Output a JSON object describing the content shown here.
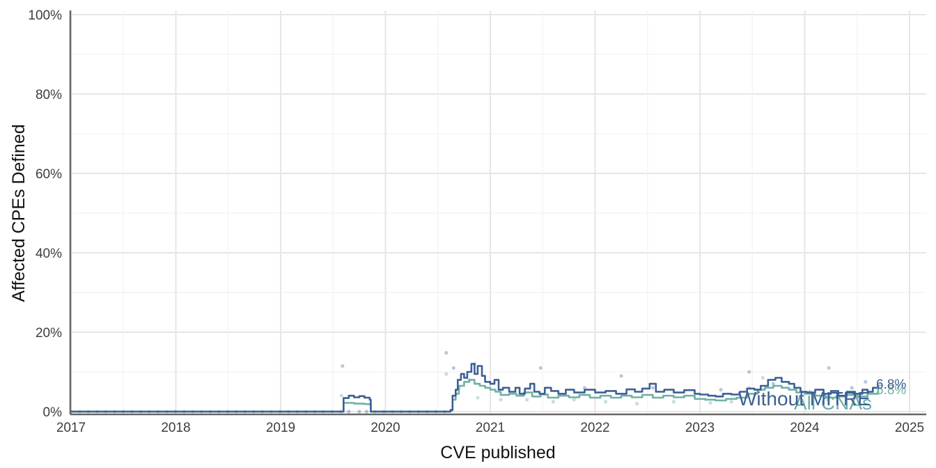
{
  "chart_data": {
    "type": "line",
    "title": "",
    "xlabel": "CVE published",
    "ylabel": "Affected CPEs Defined",
    "xlim": [
      2017,
      2025
    ],
    "ylim": [
      0,
      100
    ],
    "x_ticks": [
      "2017",
      "2018",
      "2019",
      "2020",
      "2021",
      "2022",
      "2023",
      "2024",
      "2025"
    ],
    "y_ticks": [
      "0%",
      "20%",
      "40%",
      "60%",
      "80%",
      "100%"
    ],
    "grid": true,
    "legend": "none (series labelled directly on lines)",
    "series": [
      {
        "name": "Without MITRE",
        "color": "#3c5f94",
        "end_label": "6.8%",
        "points": [
          [
            2017.0,
            0
          ],
          [
            2019.58,
            0
          ],
          [
            2019.6,
            3.4
          ],
          [
            2019.65,
            4.0
          ],
          [
            2019.7,
            3.6
          ],
          [
            2019.75,
            3.9
          ],
          [
            2019.8,
            3.5
          ],
          [
            2019.85,
            3.0
          ],
          [
            2019.86,
            0
          ],
          [
            2020.5,
            0
          ],
          [
            2020.62,
            0.4
          ],
          [
            2020.64,
            4.0
          ],
          [
            2020.67,
            5.5
          ],
          [
            2020.69,
            8.0
          ],
          [
            2020.72,
            9.5
          ],
          [
            2020.75,
            8.5
          ],
          [
            2020.78,
            10.0
          ],
          [
            2020.82,
            12.0
          ],
          [
            2020.85,
            9.5
          ],
          [
            2020.88,
            11.5
          ],
          [
            2020.92,
            9.0
          ],
          [
            2020.95,
            7.5
          ],
          [
            2021.0,
            7.0
          ],
          [
            2021.04,
            8.0
          ],
          [
            2021.08,
            5.5
          ],
          [
            2021.12,
            6.0
          ],
          [
            2021.18,
            5.0
          ],
          [
            2021.24,
            6.0
          ],
          [
            2021.28,
            4.5
          ],
          [
            2021.33,
            5.8
          ],
          [
            2021.38,
            7.0
          ],
          [
            2021.42,
            5.0
          ],
          [
            2021.47,
            4.5
          ],
          [
            2021.52,
            6.0
          ],
          [
            2021.58,
            5.2
          ],
          [
            2021.65,
            4.5
          ],
          [
            2021.72,
            5.5
          ],
          [
            2021.8,
            4.8
          ],
          [
            2021.9,
            5.5
          ],
          [
            2022.0,
            4.8
          ],
          [
            2022.1,
            5.2
          ],
          [
            2022.2,
            4.5
          ],
          [
            2022.3,
            5.6
          ],
          [
            2022.38,
            5.0
          ],
          [
            2022.45,
            5.8
          ],
          [
            2022.52,
            7.0
          ],
          [
            2022.58,
            5.0
          ],
          [
            2022.66,
            5.5
          ],
          [
            2022.75,
            4.8
          ],
          [
            2022.85,
            5.4
          ],
          [
            2022.95,
            4.5
          ],
          [
            2023.0,
            4.3
          ],
          [
            2023.08,
            4.0
          ],
          [
            2023.15,
            3.8
          ],
          [
            2023.22,
            4.5
          ],
          [
            2023.3,
            4.3
          ],
          [
            2023.38,
            5.0
          ],
          [
            2023.45,
            5.8
          ],
          [
            2023.52,
            5.5
          ],
          [
            2023.58,
            6.5
          ],
          [
            2023.65,
            8.0
          ],
          [
            2023.72,
            8.5
          ],
          [
            2023.78,
            7.5
          ],
          [
            2023.85,
            7.0
          ],
          [
            2023.9,
            6.0
          ],
          [
            2023.96,
            5.0
          ],
          [
            2024.02,
            4.8
          ],
          [
            2024.1,
            5.5
          ],
          [
            2024.18,
            4.5
          ],
          [
            2024.25,
            5.2
          ],
          [
            2024.32,
            4.0
          ],
          [
            2024.4,
            5.0
          ],
          [
            2024.48,
            4.5
          ],
          [
            2024.55,
            5.5
          ],
          [
            2024.6,
            5.0
          ],
          [
            2024.65,
            6.0
          ],
          [
            2024.7,
            6.8
          ]
        ]
      },
      {
        "name": "All CNAs",
        "color": "#6fb0a6",
        "end_label": "5.8%",
        "points": [
          [
            2017.0,
            0
          ],
          [
            2019.58,
            0
          ],
          [
            2019.6,
            2.2
          ],
          [
            2019.7,
            2.0
          ],
          [
            2019.8,
            1.9
          ],
          [
            2019.85,
            1.8
          ],
          [
            2019.86,
            0
          ],
          [
            2020.5,
            0
          ],
          [
            2020.62,
            0.3
          ],
          [
            2020.64,
            3.0
          ],
          [
            2020.67,
            4.5
          ],
          [
            2020.7,
            6.5
          ],
          [
            2020.75,
            7.5
          ],
          [
            2020.8,
            8.0
          ],
          [
            2020.85,
            7.0
          ],
          [
            2020.9,
            6.5
          ],
          [
            2020.95,
            6.0
          ],
          [
            2021.0,
            5.5
          ],
          [
            2021.05,
            5.0
          ],
          [
            2021.1,
            4.2
          ],
          [
            2021.18,
            4.5
          ],
          [
            2021.25,
            4.0
          ],
          [
            2021.32,
            4.8
          ],
          [
            2021.4,
            3.8
          ],
          [
            2021.48,
            4.3
          ],
          [
            2021.55,
            3.5
          ],
          [
            2021.65,
            4.0
          ],
          [
            2021.75,
            3.6
          ],
          [
            2021.85,
            4.2
          ],
          [
            2021.95,
            3.5
          ],
          [
            2022.05,
            4.0
          ],
          [
            2022.15,
            3.5
          ],
          [
            2022.25,
            4.0
          ],
          [
            2022.35,
            3.6
          ],
          [
            2022.45,
            4.2
          ],
          [
            2022.55,
            3.5
          ],
          [
            2022.65,
            4.0
          ],
          [
            2022.75,
            3.6
          ],
          [
            2022.85,
            4.0
          ],
          [
            2022.95,
            3.2
          ],
          [
            2023.05,
            3.0
          ],
          [
            2023.15,
            2.8
          ],
          [
            2023.25,
            3.2
          ],
          [
            2023.35,
            3.5
          ],
          [
            2023.45,
            4.5
          ],
          [
            2023.55,
            5.5
          ],
          [
            2023.62,
            6.0
          ],
          [
            2023.7,
            6.5
          ],
          [
            2023.78,
            6.0
          ],
          [
            2023.85,
            5.5
          ],
          [
            2023.92,
            4.8
          ],
          [
            2024.0,
            4.5
          ],
          [
            2024.1,
            4.0
          ],
          [
            2024.2,
            3.5
          ],
          [
            2024.3,
            3.8
          ],
          [
            2024.4,
            4.2
          ],
          [
            2024.5,
            3.8
          ],
          [
            2024.6,
            4.5
          ],
          [
            2024.7,
            5.8
          ]
        ]
      }
    ],
    "scatter_without_mitre": [
      [
        2019.59,
        11.5
      ],
      [
        2019.65,
        0
      ],
      [
        2019.75,
        0
      ],
      [
        2019.82,
        0
      ],
      [
        2020.58,
        14.8
      ],
      [
        2020.65,
        11.0
      ],
      [
        2020.85,
        12.0
      ],
      [
        2021.48,
        11.0
      ],
      [
        2022.25,
        9.0
      ],
      [
        2023.47,
        10.0
      ],
      [
        2024.23,
        11.0
      ],
      [
        2024.58,
        7.5
      ],
      [
        2021.9,
        6.0
      ],
      [
        2022.55,
        6.0
      ],
      [
        2023.2,
        5.5
      ],
      [
        2023.7,
        7.0
      ],
      [
        2024.05,
        5.0
      ],
      [
        2024.45,
        6.0
      ]
    ],
    "scatter_all_cnas": [
      [
        2019.58,
        4.0
      ],
      [
        2020.58,
        9.5
      ],
      [
        2020.7,
        6.0
      ],
      [
        2020.8,
        8.0
      ],
      [
        2020.88,
        3.5
      ],
      [
        2021.1,
        3.0
      ],
      [
        2021.35,
        3.0
      ],
      [
        2021.6,
        2.5
      ],
      [
        2021.8,
        3.0
      ],
      [
        2022.1,
        2.5
      ],
      [
        2022.4,
        2.0
      ],
      [
        2022.75,
        2.5
      ],
      [
        2023.1,
        2.2
      ],
      [
        2023.3,
        2.5
      ],
      [
        2023.47,
        6.0
      ],
      [
        2023.6,
        8.5
      ],
      [
        2023.95,
        3.5
      ],
      [
        2024.22,
        3.0
      ],
      [
        2024.5,
        3.5
      ]
    ],
    "series_text_labels": [
      "Without MITRE",
      "All CNAs"
    ]
  }
}
